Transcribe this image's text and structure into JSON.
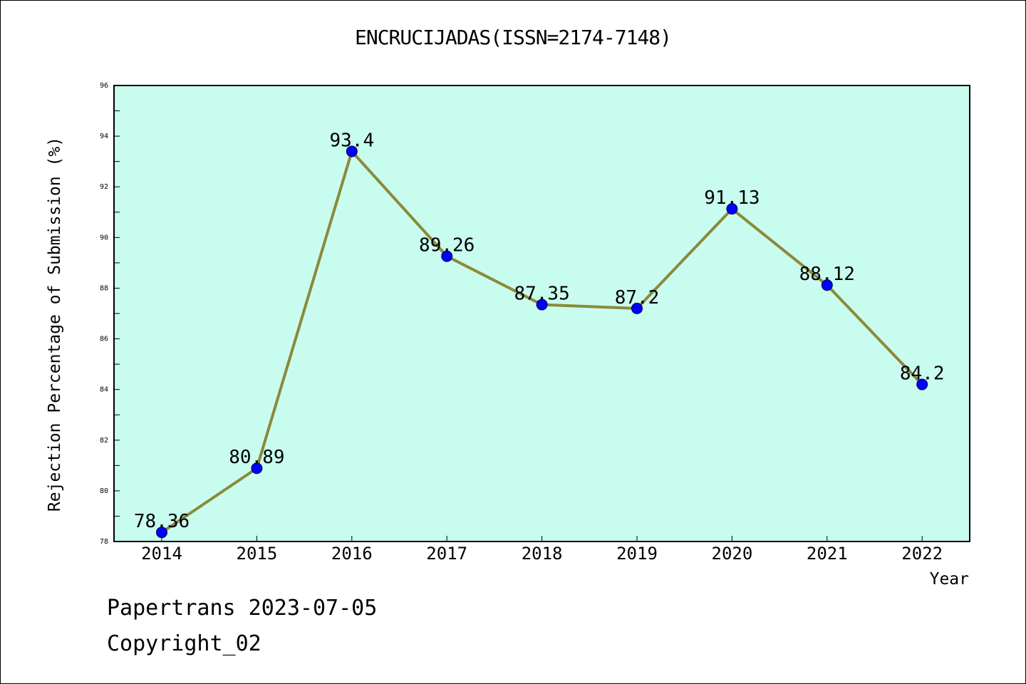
{
  "chart_data": {
    "type": "line",
    "title": "ENCRUCIJADAS(ISSN=2174-7148)",
    "xlabel": "Year",
    "ylabel": "Rejection Percentage of Submission (%)",
    "categories": [
      "2014",
      "2015",
      "2016",
      "2017",
      "2018",
      "2019",
      "2020",
      "2021",
      "2022"
    ],
    "values": [
      78.36,
      80.89,
      93.4,
      89.26,
      87.35,
      87.2,
      91.13,
      88.12,
      84.2
    ],
    "data_labels": [
      "78.36",
      "80.89",
      "93.4",
      "89.26",
      "87.35",
      "87.2",
      "91.13",
      "88.12",
      "84.2"
    ],
    "ylim": [
      78,
      96
    ],
    "yticks": [
      78,
      80,
      82,
      84,
      86,
      88,
      90,
      92,
      94,
      96
    ],
    "grid": false,
    "colors": {
      "plot_background": "#c8fcee",
      "line": "#8b8a3a",
      "marker": "#0000ff"
    }
  },
  "footer": {
    "source": "Papertrans 2023-07-05",
    "copyright": "Copyright_02"
  }
}
